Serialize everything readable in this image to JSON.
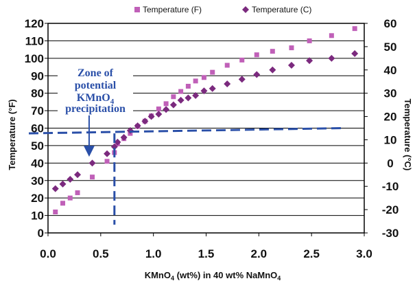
{
  "chart_data": {
    "type": "scatter",
    "legend": {
      "position": "top"
    },
    "series": [
      {
        "name": "Temperature (F)",
        "axis": "left",
        "color": "#c060b8",
        "marker": "square",
        "x": [
          0.07,
          0.14,
          0.21,
          0.28,
          0.42,
          0.56,
          0.63,
          0.66,
          0.72,
          0.78,
          0.85,
          0.92,
          0.98,
          1.05,
          1.12,
          1.19,
          1.26,
          1.33,
          1.4,
          1.48,
          1.56,
          1.7,
          1.84,
          1.98,
          2.13,
          2.31,
          2.48,
          2.69,
          2.91
        ],
        "y": [
          12,
          17,
          20,
          23,
          32,
          41,
          46,
          51,
          54,
          57,
          61,
          64,
          67,
          71,
          74,
          78,
          81,
          84,
          87,
          89,
          92,
          96,
          99,
          102,
          104,
          106,
          110,
          113,
          117
        ]
      },
      {
        "name": "Temperature (C)",
        "axis": "right",
        "color": "#7b2a7e",
        "marker": "diamond",
        "x": [
          0.07,
          0.14,
          0.21,
          0.28,
          0.42,
          0.56,
          0.63,
          0.66,
          0.72,
          0.78,
          0.85,
          0.92,
          0.98,
          1.05,
          1.12,
          1.19,
          1.26,
          1.33,
          1.4,
          1.48,
          1.56,
          1.7,
          1.84,
          1.98,
          2.13,
          2.31,
          2.48,
          2.69,
          2.91
        ],
        "y": [
          -11,
          -9,
          -7,
          -5,
          0,
          4,
          7,
          9,
          11,
          14,
          16,
          18,
          20,
          21,
          23,
          25,
          27,
          28,
          29,
          31,
          32,
          34,
          36,
          38,
          40,
          42,
          44,
          45,
          47
        ]
      }
    ],
    "xaxis": {
      "label_parts": [
        "KMnO",
        "4",
        " (wt%) in 40 wt% NaMnO",
        "4"
      ],
      "range": [
        0,
        3
      ],
      "ticks": [
        "0.0",
        "0.5",
        "1.0",
        "1.5",
        "2.0",
        "2.5",
        "3.0"
      ]
    },
    "yaxis_left": {
      "label": "Temperature (°F)",
      "range": [
        0,
        120
      ],
      "ticks": [
        "0",
        "10",
        "20",
        "30",
        "40",
        "50",
        "60",
        "70",
        "80",
        "90",
        "100",
        "110",
        "120"
      ]
    },
    "yaxis_right": {
      "label": "Temperature (°C)",
      "range": [
        -30,
        60
      ],
      "ticks": [
        "-30",
        "-20",
        "-10",
        "0",
        "10",
        "20",
        "30",
        "40",
        "50",
        "60"
      ]
    },
    "grid": {
      "horizontal": true,
      "vertical": false
    },
    "annotation": {
      "lines": [
        "Zone of",
        "potential",
        "KMnO",
        "precipitation"
      ],
      "subscript": "4",
      "color": "#2a4fa8",
      "boundary_x": 0.63,
      "boundary_y_left": 57,
      "boundary_x_end": 2.8,
      "boundary_y_end": 60
    }
  }
}
